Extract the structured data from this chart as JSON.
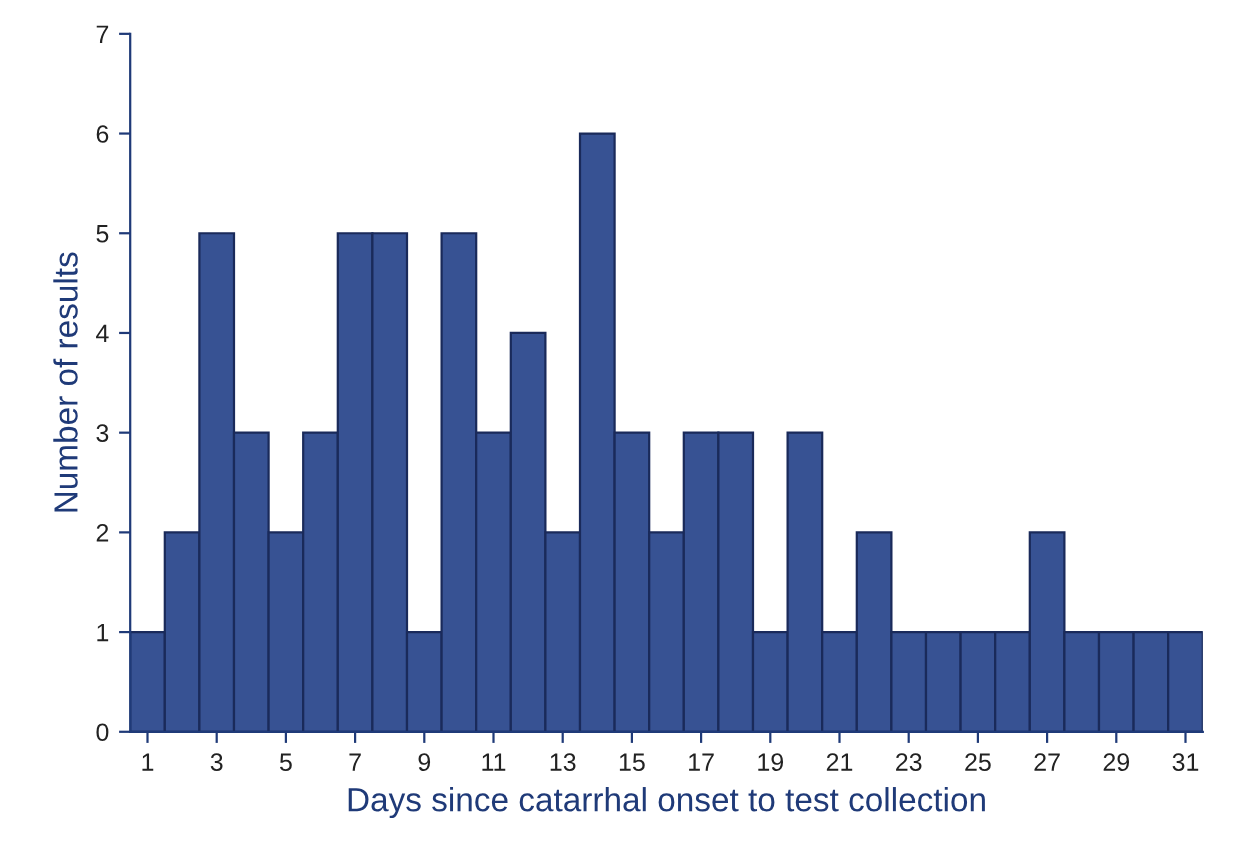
{
  "chart_data": {
    "type": "bar",
    "xlabel": "Days since catarrhal onset to test collection",
    "ylabel": "Number of results",
    "categories": [
      "1",
      null,
      "3",
      null,
      "5",
      null,
      "7",
      null,
      "9",
      null,
      "11",
      null,
      "13",
      null,
      "15",
      null,
      "17",
      null,
      "19",
      null,
      "21",
      null,
      "23",
      null,
      "25",
      null,
      "27",
      null,
      "29",
      null,
      "31"
    ],
    "values": [
      1,
      2,
      5,
      3,
      2,
      3,
      5,
      5,
      1,
      5,
      3,
      4,
      2,
      6,
      3,
      2,
      3,
      3,
      1,
      3,
      1,
      2,
      1,
      1,
      1,
      1,
      2,
      1,
      1,
      1,
      1
    ],
    "color": "#375293",
    "ylim": [
      0,
      7
    ],
    "yticks": [
      0,
      1,
      2,
      3,
      4,
      5,
      6,
      7
    ],
    "grid": false,
    "legend": false
  }
}
